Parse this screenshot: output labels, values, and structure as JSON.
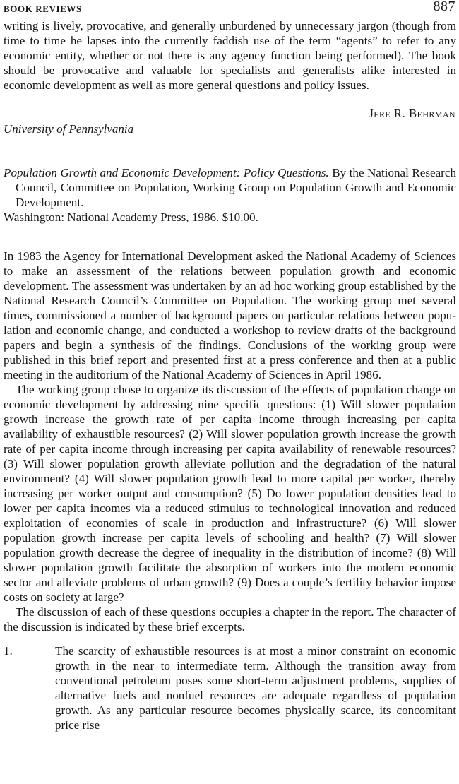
{
  "header": {
    "running_head": "BOOK REVIEWS",
    "page_number": "887"
  },
  "previous_review": {
    "closing_paragraph": "writing is lively, provocative, and generally unburdened by unnecessary jar­gon (though from time to time he lapses into the currently faddish use of the term “agents” to refer to any economic entity, whether or not there is any agency function being performed). The book should be provocative and valu­able for specialists and generalists alike interested in economic development as well as more general questions and policy issues.",
    "reviewer_name": "Jere R. Behrman",
    "reviewer_affiliation": "University of Pennsylvania"
  },
  "new_review": {
    "book_title": "Population Growth and Economic Development: Policy Questions.",
    "book_authors": "By the National Research Council, Committee on Population, Working Group on Popula­tion Growth and Economic Development.",
    "publisher_line": "Washington: National Academy Press, 1986. $10.00.",
    "paragraph_1": "In 1983 the Agency for International Development asked the National Academy of Sciences to make an assessment of the relations between popula­tion growth and economic development. The assessment was undertaken by an ad hoc working group established by the National Research Council’s Committee on Population. The working group met several times, commis­sioned a number of background papers on particular relations between popu­lation and economic change, and conducted a workshop to review drafts of the background papers and begin a synthesis of the findings. Conclusions of the working group were published in this brief report and presented first at a press conference and then at a public meeting in the auditorium of the National Academy of Sciences in April 1986.",
    "paragraph_2": "The working group chose to organize its discussion of the effects of popula­tion change on economic development by addressing nine specific questions: (1) Will slower population growth increase the growth rate of per capita income through increasing per capita availability of exhaustible resources? (2) Will slower population growth increase the growth rate of per capita income through increasing per capita availability of renewable resources? (3) Will slower population growth alleviate pollution and the degradation of the natu­ral environment? (4) Will slower population growth lead to more capital per worker, thereby increasing per worker output and consumption? (5) Do lower population densities lead to lower per capita incomes via a reduced stimulus to technological innovation and reduced exploitation of economies of scale in production and infrastructure? (6) Will slower population growth increase per capita levels of schooling and health? (7) Will slower population growth decrease the degree of inequality in the distribution of income? (8) Will slower population growth facilitate the absorption of workers into the modern economic sector and alleviate problems of urban growth? (9) Does a couple’s fertility behavior impose costs on society at large?",
    "paragraph_3": "The discussion of each of these questions occupies a chapter in the report. The character of the discussion is indicated by these brief excerpts.",
    "excerpt_1": {
      "number": "1.",
      "text": "The scarcity of exhaustible resources is at most a minor constraint on economic growth in the near to intermediate term. Although the transition away from conventional petroleum poses some short-term adjustment problems, supplies of alternative fuels and nonfuel re­sources are adequate regardless of population growth. As any partic­ular resource becomes physically scarce, its concomitant price rise"
    }
  }
}
